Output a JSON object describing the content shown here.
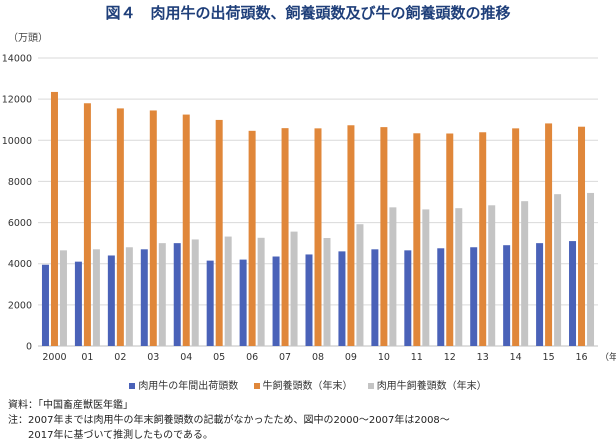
{
  "title": "図４　肉用牛の出荷頭数、飼養頭数及び牛の飼養頭数の推移",
  "unit_label": "（万頭）",
  "x_unit_label": "（年）",
  "notes": {
    "source": "資料：「中国畜産獣医年鑑」",
    "note_line1": "注：2007年までは肉用牛の年末飼養頭数の記載がなかったため、図中の2000～2007年は2008～",
    "note_line2": "　　2017年に基づいて推測したものである。"
  },
  "chart_data": {
    "type": "bar",
    "title": "図４　肉用牛の出荷頭数、飼養頭数及び牛の飼養頭数の推移",
    "ylabel": "（万頭）",
    "xlabel": "（年）",
    "ylim": [
      0,
      14000
    ],
    "yticks": [
      0,
      2000,
      4000,
      6000,
      8000,
      10000,
      12000,
      14000
    ],
    "grid": true,
    "legend_position": "bottom",
    "categories": [
      "2000",
      "01",
      "02",
      "03",
      "04",
      "05",
      "06",
      "07",
      "08",
      "09",
      "10",
      "11",
      "12",
      "13",
      "14",
      "15",
      "16"
    ],
    "series": [
      {
        "name": "肉用牛の年間出荷頭数",
        "color": "#4a62b8",
        "values": [
          3950,
          4100,
          4400,
          4700,
          5000,
          4150,
          4200,
          4350,
          4450,
          4600,
          4700,
          4650,
          4750,
          4800,
          4900,
          5000,
          5100
        ]
      },
      {
        "name": "牛飼養頭数（年末）",
        "color": "#e0873a",
        "values": [
          12350,
          11800,
          11550,
          11450,
          11250,
          10990,
          10460,
          10590,
          10580,
          10730,
          10640,
          10340,
          10330,
          10390,
          10580,
          10820,
          10660
        ]
      },
      {
        "name": "肉用牛飼養頭数（年末）",
        "color": "#c4c4c4",
        "values": [
          4650,
          4700,
          4800,
          5000,
          5180,
          5320,
          5260,
          5560,
          5250,
          5920,
          6740,
          6640,
          6700,
          6840,
          7040,
          7380,
          7440
        ]
      }
    ]
  }
}
